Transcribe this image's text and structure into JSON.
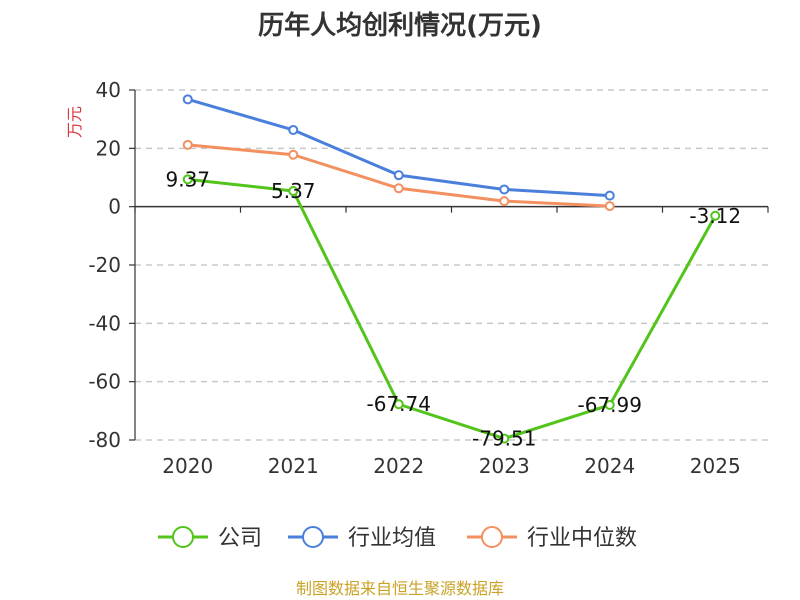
{
  "chart_data": {
    "type": "line",
    "title": "历年人均创利情况(万元)",
    "ylabel": "万元",
    "categories": [
      "2020",
      "2021",
      "2022",
      "2023",
      "2024",
      "2025"
    ],
    "ylim": [
      -80,
      40
    ],
    "yticks": [
      40,
      20,
      0,
      -20,
      -40,
      -60,
      -80
    ],
    "grid": true,
    "legend_position": "bottom",
    "series": [
      {
        "name": "公司",
        "color": "#52c41a",
        "values": [
          9.37,
          5.37,
          -67.74,
          -79.51,
          -67.99,
          -3.12
        ],
        "labels": [
          "9.37",
          "5.37",
          "-67.74",
          "-79.51",
          "-67.99",
          "-3.12"
        ]
      },
      {
        "name": "行业均值",
        "color": "#4a7fdc",
        "values": [
          36.8,
          26.3,
          10.8,
          5.9,
          3.8,
          null
        ]
      },
      {
        "name": "行业中位数",
        "color": "#f39060",
        "values": [
          21.2,
          17.8,
          6.3,
          1.9,
          0.2,
          null
        ]
      }
    ]
  },
  "source": "制图数据来自恒生聚源数据库"
}
